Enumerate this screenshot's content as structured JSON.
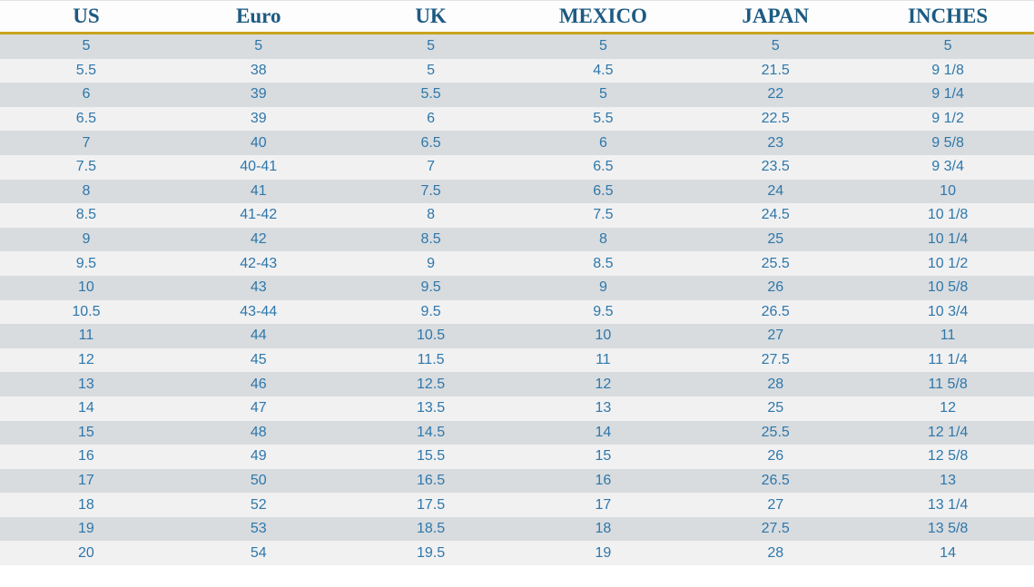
{
  "accent_colors": {
    "header_text": "#1c5a82",
    "cell_text": "#2e77aa",
    "header_underline": "#c9a31c",
    "row_stripe_dark": "#d8dcdf",
    "row_stripe_light": "#f1f1f2"
  },
  "chart_data": {
    "type": "table",
    "columns": [
      "US",
      "Euro",
      "UK",
      "MEXICO",
      "JAPAN",
      "INCHES"
    ],
    "rows": [
      [
        "5",
        "5",
        "5",
        "5",
        "5",
        "5"
      ],
      [
        "5.5",
        "38",
        "5",
        "4.5",
        "21.5",
        "9 1/8"
      ],
      [
        "6",
        "39",
        "5.5",
        "5",
        "22",
        "9 1/4"
      ],
      [
        "6.5",
        "39",
        "6",
        "5.5",
        "22.5",
        "9 1/2"
      ],
      [
        "7",
        "40",
        "6.5",
        "6",
        "23",
        "9 5/8"
      ],
      [
        "7.5",
        "40-41",
        "7",
        "6.5",
        "23.5",
        "9 3/4"
      ],
      [
        "8",
        "41",
        "7.5",
        "6.5",
        "24",
        "10"
      ],
      [
        "8.5",
        "41-42",
        "8",
        "7.5",
        "24.5",
        "10 1/8"
      ],
      [
        "9",
        "42",
        "8.5",
        "8",
        "25",
        "10 1/4"
      ],
      [
        "9.5",
        "42-43",
        "9",
        "8.5",
        "25.5",
        "10 1/2"
      ],
      [
        "10",
        "43",
        "9.5",
        "9",
        "26",
        "10 5/8"
      ],
      [
        "10.5",
        "43-44",
        "9.5",
        "9.5",
        "26.5",
        "10 3/4"
      ],
      [
        "11",
        "44",
        "10.5",
        "10",
        "27",
        "11"
      ],
      [
        "12",
        "45",
        "11.5",
        "11",
        "27.5",
        "11 1/4"
      ],
      [
        "13",
        "46",
        "12.5",
        "12",
        "28",
        "11 5/8"
      ],
      [
        "14",
        "47",
        "13.5",
        "13",
        "25",
        "12"
      ],
      [
        "15",
        "48",
        "14.5",
        "14",
        "25.5",
        "12 1/4"
      ],
      [
        "16",
        "49",
        "15.5",
        "15",
        "26",
        "12 5/8"
      ],
      [
        "17",
        "50",
        "16.5",
        "16",
        "26.5",
        "13"
      ],
      [
        "18",
        "52",
        "17.5",
        "17",
        "27",
        "13 1/4"
      ],
      [
        "19",
        "53",
        "18.5",
        "18",
        "27.5",
        "13 5/8"
      ],
      [
        "20",
        "54",
        "19.5",
        "19",
        "28",
        "14"
      ]
    ]
  }
}
